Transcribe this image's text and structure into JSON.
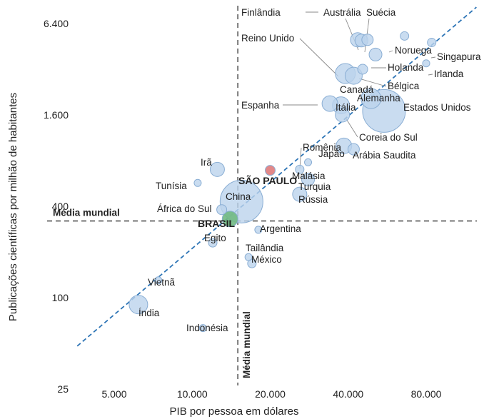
{
  "chart_data": {
    "type": "scatter",
    "title": "",
    "xlabel": "PIB por pessoa em dólares",
    "ylabel": "Publicações científicas por milhão de habitantes",
    "x_scale": "log",
    "y_scale": "log",
    "x_ticks": [
      5000,
      10000,
      20000,
      40000,
      80000
    ],
    "x_tick_labels": [
      "5.000",
      "10.000",
      "20.000",
      "40.000",
      "80.000"
    ],
    "y_ticks": [
      25,
      100,
      400,
      1600,
      6400
    ],
    "y_tick_labels": [
      "25",
      "100",
      "400",
      "1.600",
      "6.400"
    ],
    "xlim": [
      3100,
      160000
    ],
    "ylim": [
      25,
      9600
    ],
    "grid": false,
    "legend": "none",
    "reference_lines": [
      {
        "orientation": "vertical",
        "value": 15000,
        "label": "Média mundial"
      },
      {
        "orientation": "horizontal",
        "value": 320,
        "label": "Média mundial"
      }
    ],
    "trend_line": {
      "style": "dashed",
      "color": "#2e75b6",
      "from": [
        3600,
        48
      ],
      "to": [
        125000,
        8200
      ]
    },
    "colors": {
      "default": "#bcd3ec",
      "brasil": "#70b982",
      "sao_paulo": "#e07b7b",
      "trend": "#2e75b6",
      "reference": "#555555"
    },
    "points": [
      {
        "label": "Finlândia",
        "x": 43500,
        "y": 5000,
        "size": 10
      },
      {
        "label": "Austrália",
        "x": 45000,
        "y": 4950,
        "size": 9
      },
      {
        "label": "Suécia",
        "x": 47500,
        "y": 5000,
        "size": 8
      },
      {
        "label": "Reino Unido",
        "x": 39000,
        "y": 3000,
        "size": 14
      },
      {
        "label": "Noruega",
        "x": 66000,
        "y": 5300,
        "size": 6
      },
      {
        "label": "Singapura",
        "x": 84000,
        "y": 4800,
        "size": 6
      },
      {
        "label": "Holanda",
        "x": 51000,
        "y": 4000,
        "size": 9
      },
      {
        "label": "Irlanda",
        "x": 80000,
        "y": 3500,
        "size": 5
      },
      {
        "label": "Bélgica",
        "x": 45500,
        "y": 3200,
        "size": 7
      },
      {
        "label": "Canadá",
        "x": 42000,
        "y": 2900,
        "size": 12
      },
      {
        "label": "Alemanha",
        "x": 49000,
        "y": 2050,
        "size": 14
      },
      {
        "label": "Estados Unidos",
        "x": 55000,
        "y": 1700,
        "size": 30
      },
      {
        "label": "Espanha",
        "x": 34000,
        "y": 1900,
        "size": 11
      },
      {
        "label": "Itália",
        "x": 37500,
        "y": 1850,
        "size": 12
      },
      {
        "label": "Coreia do Sul",
        "x": 38000,
        "y": 1600,
        "size": 10
      },
      {
        "label": "Japão",
        "x": 38500,
        "y": 1000,
        "size": 11
      },
      {
        "label": "Arábia Saudita",
        "x": 42000,
        "y": 950,
        "size": 8
      },
      {
        "label": "Romênia",
        "x": 28000,
        "y": 780,
        "size": 5
      },
      {
        "label": "Malásia",
        "x": 26000,
        "y": 700,
        "size": 6
      },
      {
        "label": "Turquia",
        "x": 28000,
        "y": 600,
        "size": 9
      },
      {
        "label": "Rússia",
        "x": 26000,
        "y": 480,
        "size": 10
      },
      {
        "label": "SÃO PAULO",
        "x": 20000,
        "y": 690,
        "size": 7
      },
      {
        "label": "China",
        "x": 15500,
        "y": 430,
        "size": 30
      },
      {
        "label": "Irã",
        "x": 12500,
        "y": 700,
        "size": 10
      },
      {
        "label": "Tunísia",
        "x": 10500,
        "y": 570,
        "size": 5
      },
      {
        "label": "África do Sul",
        "x": 13000,
        "y": 380,
        "size": 7
      },
      {
        "label": "BRASIL",
        "x": 14000,
        "y": 330,
        "size": 11
      },
      {
        "label": "Argentina",
        "x": 18000,
        "y": 280,
        "size": 5
      },
      {
        "label": "Egito",
        "x": 12000,
        "y": 230,
        "size": 6
      },
      {
        "label": "Tailândia",
        "x": 16500,
        "y": 185,
        "size": 5
      },
      {
        "label": "México",
        "x": 17000,
        "y": 168,
        "size": 6
      },
      {
        "label": "Vietnã",
        "x": 7400,
        "y": 130,
        "size": 5
      },
      {
        "label": "Índia",
        "x": 6200,
        "y": 90,
        "size": 13
      },
      {
        "label": "Indonésia",
        "x": 11000,
        "y": 63,
        "size": 5
      }
    ]
  }
}
